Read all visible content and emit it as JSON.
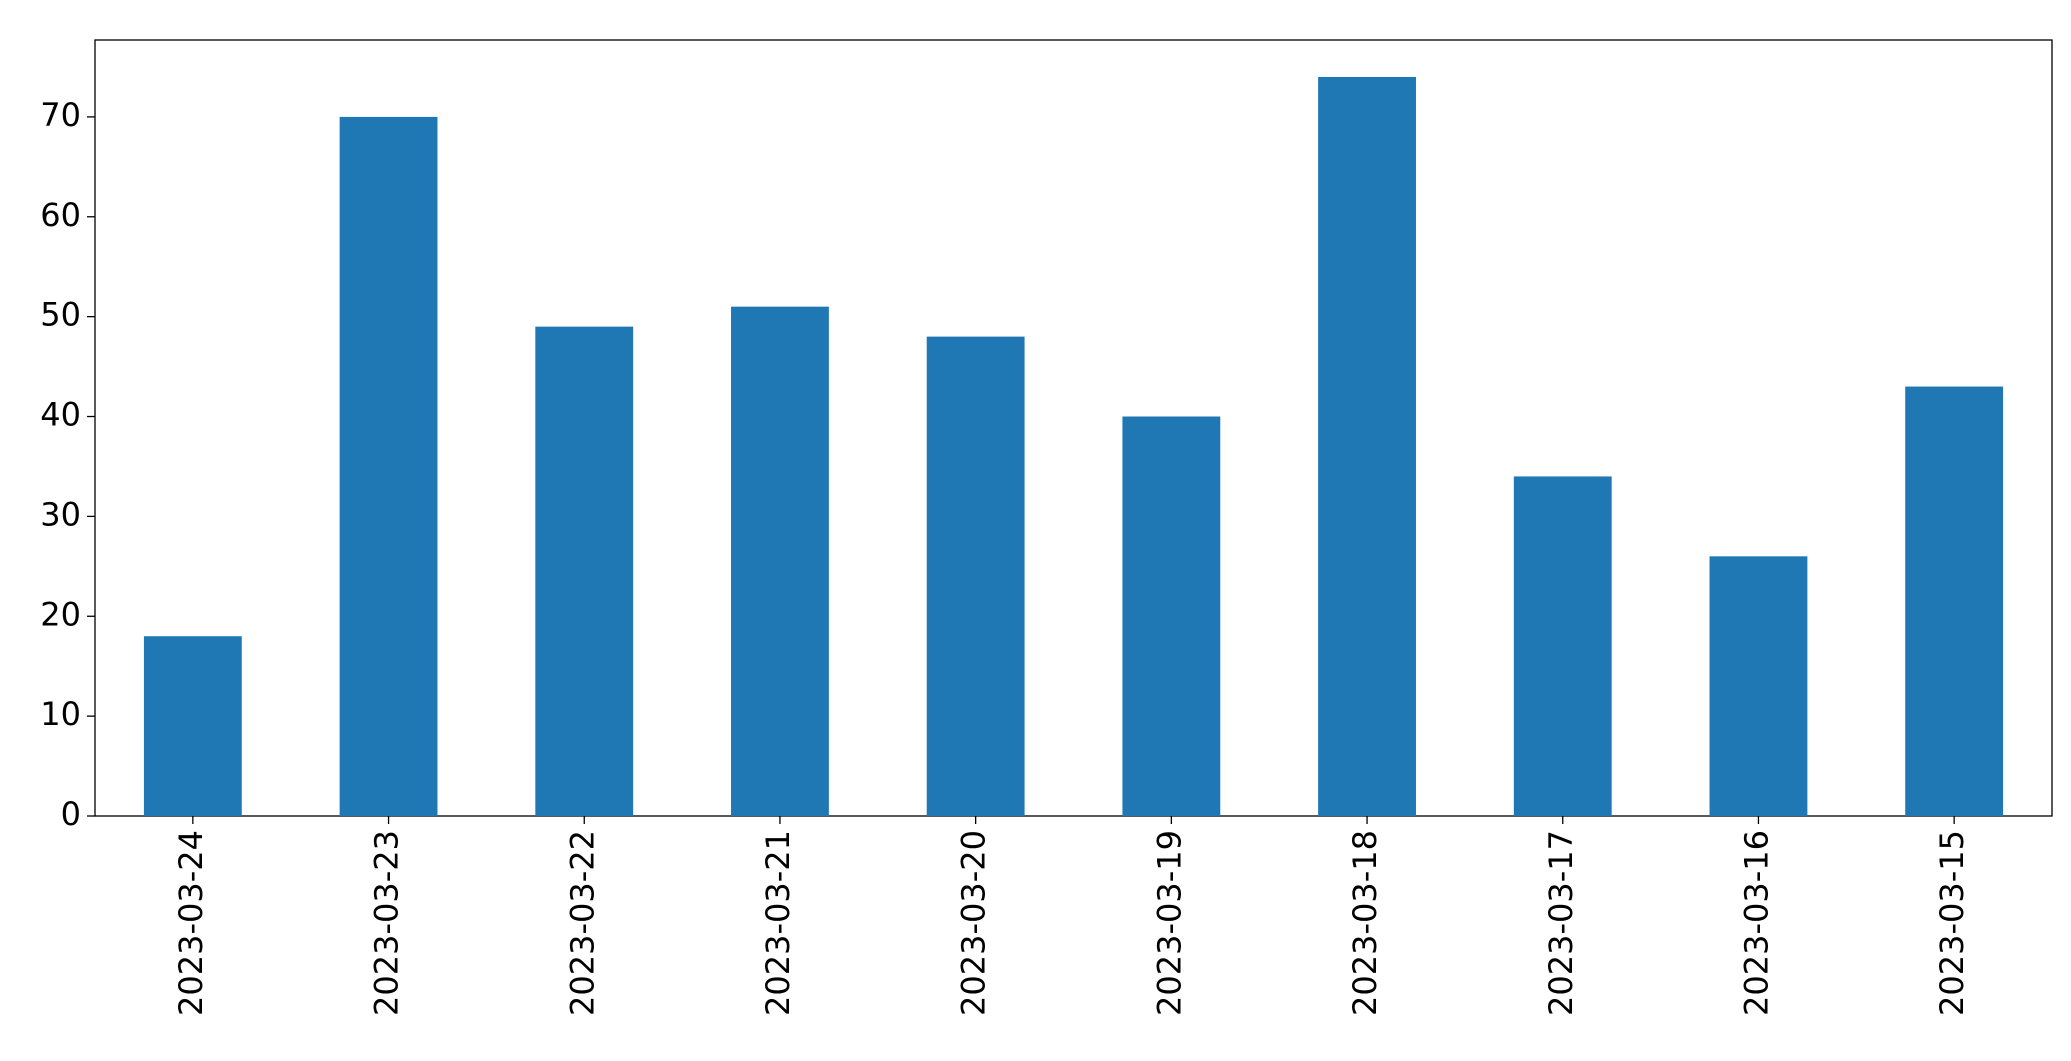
{
  "chart_data": {
    "type": "bar",
    "categories": [
      "2023-03-24",
      "2023-03-23",
      "2023-03-22",
      "2023-03-21",
      "2023-03-20",
      "2023-03-19",
      "2023-03-18",
      "2023-03-17",
      "2023-03-16",
      "2023-03-15"
    ],
    "values": [
      18,
      70,
      49,
      51,
      48,
      40,
      74,
      34,
      26,
      43
    ],
    "color": "#1f77b4",
    "ylim": [
      0,
      77.7
    ],
    "yticks": [
      0,
      10,
      20,
      30,
      40,
      50,
      60,
      70
    ],
    "grid": false
  }
}
